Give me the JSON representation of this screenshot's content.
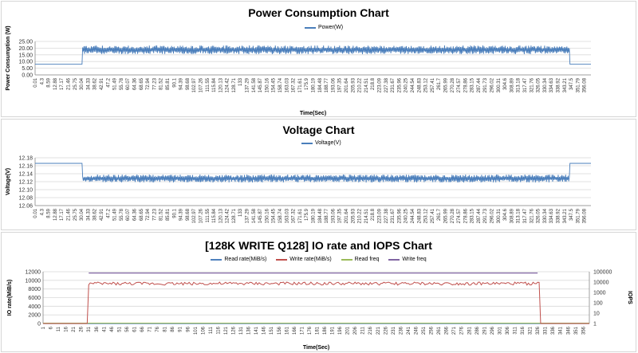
{
  "chart_data": [
    {
      "type": "line",
      "title": "Power Consumption Chart",
      "xlabel": "Time(Sec)",
      "ylabel": "Power Consumption (W)",
      "ylim": [
        0,
        25
      ],
      "yticks": [
        "0.00",
        "5.00",
        "10.00",
        "15.00",
        "20.00",
        "25.00"
      ],
      "xticks": [
        "0.01",
        "4.3",
        "8.59",
        "12.88",
        "17.17",
        "21.46",
        "25.75",
        "30.04",
        "34.33",
        "38.62",
        "42.91",
        "47.2",
        "51.49",
        "55.78",
        "60.07",
        "64.36",
        "68.65",
        "72.94",
        "77.23",
        "81.52",
        "85.81",
        "90.1",
        "94.39",
        "98.68",
        "102.97",
        "107.26",
        "111.55",
        "115.84",
        "120.13",
        "124.42",
        "128.71",
        "133",
        "137.29",
        "141.58",
        "145.87",
        "150.16",
        "154.45",
        "158.74",
        "163.03",
        "167.32",
        "171.61",
        "175.9",
        "180.19",
        "184.48",
        "188.77",
        "193.06",
        "197.35",
        "201.64",
        "205.93",
        "210.22",
        "214.51",
        "218.8",
        "223.09",
        "227.38",
        "231.67",
        "235.96",
        "240.25",
        "244.54",
        "248.83",
        "253.12",
        "257.41",
        "261.7",
        "265.99",
        "270.28",
        "274.57",
        "278.86",
        "283.15",
        "287.44",
        "291.73",
        "296.02",
        "300.31",
        "304.6",
        "308.89",
        "313.18",
        "317.47",
        "321.76",
        "326.05",
        "330.34",
        "334.63",
        "338.92",
        "343.21",
        "347.5",
        "351.79",
        "356.08"
      ],
      "grid": true,
      "legend": "top-center",
      "series": [
        {
          "name": "Power(W)",
          "color": "#4a7ebb",
          "idle_level": 8.0,
          "active_low": 15.5,
          "active_high": 22.0,
          "active_start": 30.5,
          "active_end": 346.5
        }
      ]
    },
    {
      "type": "line",
      "title": "Voltage Chart",
      "xlabel": "",
      "ylabel": "Voltage(V)",
      "ylim": [
        12.06,
        12.18
      ],
      "yticks": [
        "12.06",
        "12.08",
        "12.10",
        "12.12",
        "12.14",
        "12.16",
        "12.18"
      ],
      "xticks": [
        "0.01",
        "4.3",
        "8.59",
        "12.88",
        "17.17",
        "21.46",
        "25.75",
        "30.04",
        "34.33",
        "38.62",
        "42.91",
        "47.2",
        "51.49",
        "55.78",
        "60.07",
        "64.36",
        "68.65",
        "72.94",
        "77.23",
        "81.52",
        "85.81",
        "90.1",
        "94.39",
        "98.68",
        "102.97",
        "107.26",
        "111.55",
        "115.84",
        "120.13",
        "124.42",
        "128.71",
        "133",
        "137.29",
        "141.58",
        "145.87",
        "150.16",
        "154.45",
        "158.74",
        "163.03",
        "167.32",
        "171.61",
        "175.9",
        "180.19",
        "184.48",
        "188.77",
        "193.06",
        "197.35",
        "201.64",
        "205.93",
        "210.22",
        "214.51",
        "218.8",
        "223.09",
        "227.38",
        "231.67",
        "235.96",
        "240.25",
        "244.54",
        "248.83",
        "253.12",
        "257.41",
        "261.7",
        "265.99",
        "270.28",
        "274.57",
        "278.86",
        "283.15",
        "287.44",
        "291.73",
        "296.02",
        "300.31",
        "304.6",
        "308.89",
        "313.18",
        "317.47",
        "321.76",
        "326.05",
        "330.34",
        "334.63",
        "338.92",
        "343.21",
        "347.5",
        "351.79",
        "356.08"
      ],
      "grid": true,
      "legend": "top-center",
      "series": [
        {
          "name": "Voltage(V)",
          "color": "#4a7ebb",
          "idle_level": 12.166,
          "active_low": 12.118,
          "active_high": 12.138,
          "active_start": 30.5,
          "active_end": 346.5
        }
      ]
    },
    {
      "type": "line",
      "title": "[128K WRITE Q128] IO rate and IOPS Chart",
      "xlabel": "Time(Sec)",
      "ylabel": "IO rate(MiB/s)",
      "y2label": "IOPS",
      "ylim": [
        0,
        12000
      ],
      "yticks": [
        "0",
        "2000",
        "4000",
        "6000",
        "8000",
        "10000",
        "12000"
      ],
      "y2scale": "log",
      "y2ticks": [
        "1",
        "10",
        "100",
        "1000",
        "10000",
        "100000"
      ],
      "xticks": [
        "1",
        "6",
        "11",
        "16",
        "21",
        "26",
        "31",
        "36",
        "41",
        "46",
        "51",
        "56",
        "61",
        "66",
        "71",
        "76",
        "81",
        "86",
        "91",
        "96",
        "101",
        "106",
        "111",
        "116",
        "121",
        "126",
        "131",
        "136",
        "141",
        "146",
        "151",
        "156",
        "161",
        "166",
        "171",
        "176",
        "181",
        "186",
        "191",
        "196",
        "201",
        "206",
        "211",
        "216",
        "221",
        "226",
        "231",
        "236",
        "241",
        "246",
        "251",
        "256",
        "261",
        "266",
        "271",
        "276",
        "281",
        "286",
        "291",
        "296",
        "301",
        "306",
        "311",
        "316",
        "321",
        "326",
        "331",
        "336",
        "341",
        "346",
        "351",
        "356"
      ],
      "grid": true,
      "legend": "top-center",
      "series": [
        {
          "name": "Read rate(MiB/s)",
          "color": "#4f81bd",
          "level": 0
        },
        {
          "name": "Write rate(MiB/s)",
          "color": "#c0504d",
          "level_low": 8900,
          "level_high": 9600,
          "active_start": 31,
          "active_end": 327
        },
        {
          "name": "Read freq",
          "color": "#9bbb59",
          "level": 1
        },
        {
          "name": "Write freq",
          "color": "#8064a2",
          "level": 75000,
          "active_start": 31,
          "active_end": 326
        }
      ]
    }
  ]
}
